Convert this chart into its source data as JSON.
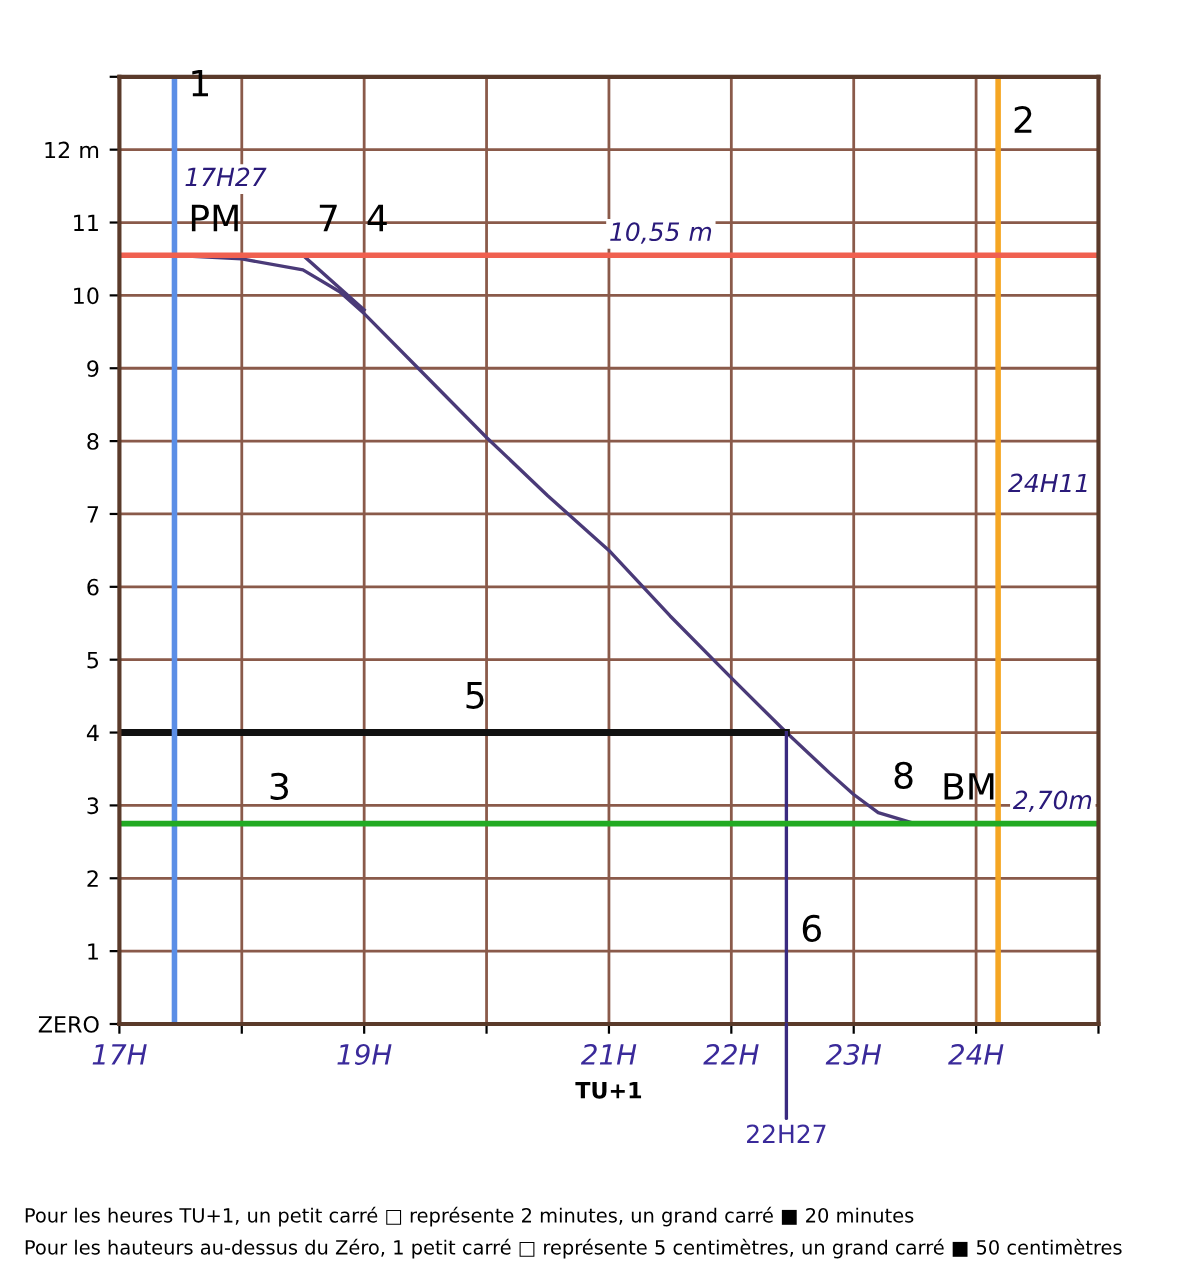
{
  "chart_data": {
    "type": "line",
    "xlabel": "TU+1",
    "series": [
      {
        "color": "#4a3a78",
        "x": [
          17.45,
          18.0,
          18.5,
          18.8,
          19.0,
          19.5,
          20.0,
          20.5,
          21.0,
          21.5,
          22.0,
          22.45,
          22.8,
          23.0,
          23.2,
          23.5,
          24.0
        ],
        "values": [
          10.55,
          10.5,
          10.35,
          10.05,
          9.75,
          8.9,
          8.05,
          7.25,
          6.5,
          5.6,
          4.75,
          4.0,
          3.45,
          3.15,
          2.9,
          2.75,
          2.75
        ]
      },
      {
        "color": "#4a3a78",
        "x": [
          18.5,
          19.0
        ],
        "values": [
          10.55,
          9.8
        ]
      },
      {
        "color": "#111111",
        "x": [
          17.0,
          22.45
        ],
        "values": [
          4.0,
          4.0
        ]
      },
      {
        "color": "#3a2a80",
        "x": [
          22.45,
          22.45
        ],
        "values": [
          4.0,
          0.0
        ]
      }
    ],
    "ref_lines": [
      {
        "axis": "x",
        "value": 17.45,
        "label": "17H27",
        "color": "#5b8ee6"
      },
      {
        "axis": "x",
        "value": 24.18,
        "label": "24H11",
        "color": "#f5a623"
      },
      {
        "axis": "y",
        "value": 10.55,
        "label": "10,55 m",
        "color": "#f06050"
      },
      {
        "axis": "y",
        "value": 2.75,
        "label": "2,70m",
        "color": "#22aa22"
      }
    ],
    "annotations": [
      {
        "text": "1",
        "x": 17.45,
        "y": 12.4
      },
      {
        "text": "2",
        "x": 24.18,
        "y": 11.9
      },
      {
        "text": "PM",
        "x": 17.45,
        "y": 10.55
      },
      {
        "text": "BM",
        "x": 23.6,
        "y": 2.75
      },
      {
        "text": "3",
        "x": 18.1,
        "y": 2.75
      },
      {
        "text": "4",
        "x": 18.9,
        "y": 10.55
      },
      {
        "text": "5",
        "x": 19.7,
        "y": 4.0
      },
      {
        "text": "6",
        "x": 22.45,
        "y": 0.8
      },
      {
        "text": "7",
        "x": 18.5,
        "y": 10.55
      },
      {
        "text": "8",
        "x": 23.2,
        "y": 2.9
      },
      {
        "text": "22H27",
        "x": 22.45,
        "y": 0
      },
      "Pour les heures TU+1, un petit carré □ représente 2 minutes, un grand carré ■ 20 minutes",
      "Pour les hauteurs au-dessus du Zéro, 1 petit carré □ représente 5 centimètres, un grand carré ■ 50 centimètres"
    ],
    "xlim": [
      17,
      25
    ],
    "ylim": [
      0,
      13
    ],
    "xticks": [
      {
        "value": 17,
        "label": "17H"
      },
      {
        "value": 18,
        "label": null
      },
      {
        "value": 19,
        "label": "19H"
      },
      {
        "value": 20,
        "label": null
      },
      {
        "value": 21,
        "label": "21H"
      },
      {
        "value": 22,
        "label": "22H"
      },
      {
        "value": 23,
        "label": "23H"
      },
      {
        "value": 24,
        "label": "24H"
      },
      {
        "value": 25,
        "label": null
      }
    ],
    "yticks": [
      {
        "value": 0,
        "label": "ZERO"
      },
      1,
      2,
      3,
      4,
      5,
      6,
      7,
      8,
      9,
      10,
      11,
      {
        "value": 12,
        "label": "12 m"
      },
      {
        "value": 13,
        "label": null
      }
    ],
    "grid": true
  }
}
